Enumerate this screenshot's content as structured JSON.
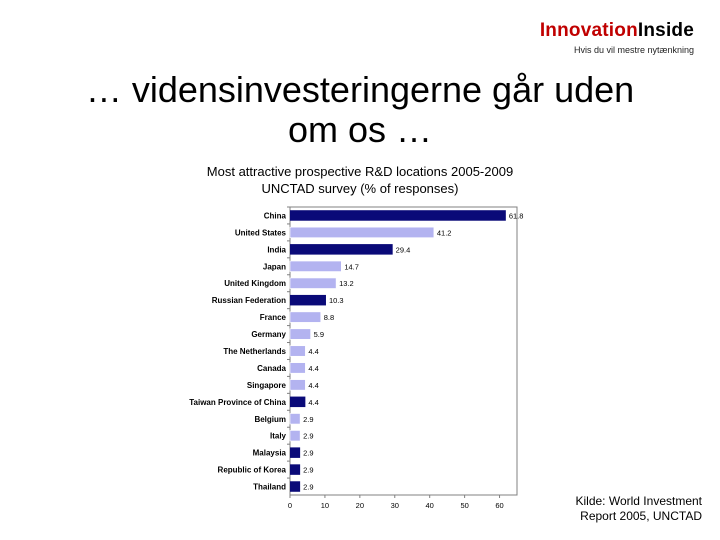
{
  "brand": {
    "name_part1": "Innovation",
    "name_part2": "Inside",
    "tagline": "Hvis du vil mestre nytænkning"
  },
  "slide": {
    "title_line1": "… vidensinvesteringerne går uden",
    "title_line2": "om os …"
  },
  "source": {
    "line1": "Kilde: World Investment",
    "line2": "Report 2005, UNCTAD"
  },
  "colors": {
    "dark_bar": "#0a0a78",
    "light_bar": "#b3b3f0",
    "axis": "#808080"
  },
  "chart_data": {
    "type": "bar",
    "orientation": "horizontal",
    "title_line1": "Most attractive prospective R&D locations 2005-2009",
    "title_line2": "UNCTAD survey (% of responses)",
    "categories": [
      "China",
      "United States",
      "India",
      "Japan",
      "United Kingdom",
      "Russian Federation",
      "France",
      "Germany",
      "The Netherlands",
      "Canada",
      "Singapore",
      "Taiwan Province of China",
      "Belgium",
      "Italy",
      "Malaysia",
      "Republic of Korea",
      "Thailand"
    ],
    "values": [
      61.8,
      41.2,
      29.4,
      14.7,
      13.2,
      10.3,
      8.8,
      5.9,
      4.4,
      4.4,
      4.4,
      4.4,
      2.9,
      2.9,
      2.9,
      2.9,
      2.9
    ],
    "value_labels": [
      "61.8",
      "41.2",
      "29.4",
      "14.7",
      "13.2",
      "10.3",
      "8.8",
      "5.9",
      "4.4",
      "4.4",
      "4.4",
      "4.4",
      "2.9",
      "2.9",
      "2.9",
      "2.9",
      "2.9"
    ],
    "bar_styles": [
      "dark",
      "light",
      "dark",
      "light",
      "light",
      "dark",
      "light",
      "light",
      "light",
      "light",
      "light",
      "dark",
      "light",
      "light",
      "dark",
      "dark",
      "dark"
    ],
    "xticks": [
      "0",
      "10",
      "20",
      "30",
      "40",
      "50",
      "60"
    ],
    "xlim": [
      0,
      65
    ],
    "grid": false,
    "legend": "none"
  }
}
